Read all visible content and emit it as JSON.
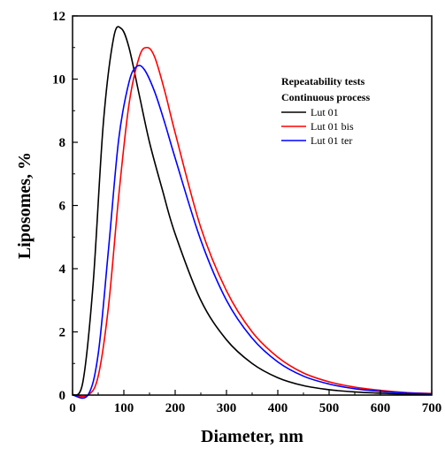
{
  "chart_data": {
    "type": "line",
    "title": "",
    "xlabel": "Diameter, nm",
    "ylabel": "Liposomes, %",
    "xlim": [
      0,
      700
    ],
    "ylim": [
      0,
      12
    ],
    "xticks": [
      0,
      100,
      200,
      300,
      400,
      500,
      600,
      700
    ],
    "yticks": [
      0,
      2,
      4,
      6,
      8,
      10,
      12
    ],
    "grid": false,
    "legend": {
      "placement": "top-right",
      "title_lines": [
        "Repeatability tests",
        "Continuous process"
      ]
    },
    "series": [
      {
        "name": "Lut 01",
        "color": "#000000",
        "x": [
          0,
          20,
          40,
          60,
          80,
          95,
          110,
          130,
          150,
          175,
          200,
          250,
          300,
          350,
          400,
          450,
          500,
          550,
          600,
          650,
          700
        ],
        "y": [
          0.0,
          0.4,
          3.5,
          8.6,
          11.3,
          11.6,
          11.0,
          9.5,
          8.0,
          6.5,
          5.1,
          3.0,
          1.75,
          1.0,
          0.55,
          0.3,
          0.17,
          0.1,
          0.06,
          0.03,
          0.02
        ]
      },
      {
        "name": "Lut 01 bis",
        "color": "#ff0000",
        "x": [
          0,
          30,
          50,
          70,
          90,
          110,
          130,
          145,
          160,
          180,
          200,
          250,
          300,
          350,
          400,
          450,
          500,
          550,
          600,
          650,
          700
        ],
        "y": [
          0.0,
          0.0,
          0.6,
          2.8,
          6.3,
          9.2,
          10.7,
          11.0,
          10.7,
          9.6,
          8.3,
          5.3,
          3.3,
          2.0,
          1.2,
          0.7,
          0.42,
          0.25,
          0.15,
          0.08,
          0.05
        ]
      },
      {
        "name": "Lut 01 ter",
        "color": "#0000ff",
        "x": [
          0,
          30,
          50,
          70,
          90,
          110,
          125,
          140,
          160,
          180,
          200,
          250,
          300,
          350,
          400,
          450,
          500,
          550,
          600,
          650,
          700
        ],
        "y": [
          0.0,
          0.0,
          1.3,
          4.6,
          8.1,
          9.9,
          10.4,
          10.3,
          9.6,
          8.6,
          7.5,
          4.9,
          3.0,
          1.8,
          1.05,
          0.6,
          0.35,
          0.2,
          0.12,
          0.07,
          0.04
        ]
      }
    ]
  }
}
